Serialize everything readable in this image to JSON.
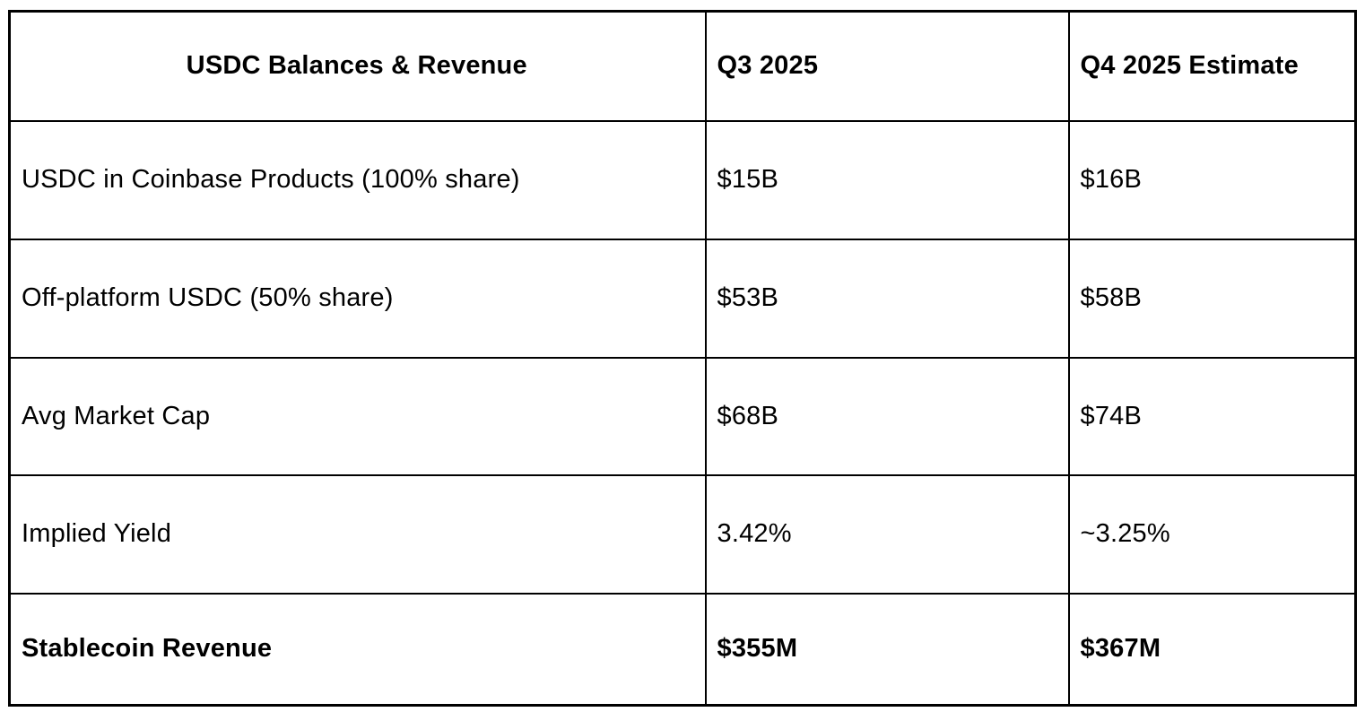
{
  "chart_data": {
    "type": "table",
    "title": "USDC Balances & Revenue",
    "header": [
      "USDC Balances & Revenue",
      "Q3 2025",
      "Q4 2025 Estimate"
    ],
    "rows": [
      [
        "USDC in Coinbase Products (100% share)",
        "$15B",
        "$16B"
      ],
      [
        "Off-platform USDC (50% share)",
        "$53B",
        "$58B"
      ],
      [
        "Avg Market Cap",
        "$68B",
        "$74B"
      ],
      [
        "Implied Yield",
        "3.42%",
        "~3.25%"
      ],
      [
        "Stablecoin Revenue",
        "$355M",
        "$367M"
      ]
    ],
    "bold_rows": [
      "Stablecoin Revenue"
    ],
    "layout": {
      "grid": "on",
      "header_col1_align": "center",
      "body_align": "left"
    }
  },
  "styles": {
    "border_color": "#000000",
    "background_color": "#ffffff",
    "text_color": "#000000"
  }
}
